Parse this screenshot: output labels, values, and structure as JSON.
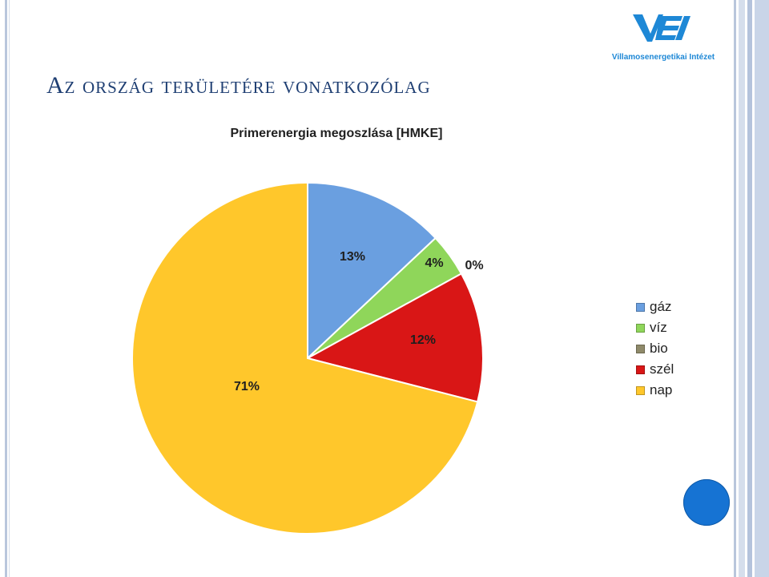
{
  "slide": {
    "title": "Az ország területére vonatkozólag",
    "logo_caption": "Villamosenergetikai Intézet"
  },
  "colors": {
    "title": "#1f3f73",
    "logo": "#1e88d6",
    "nav_dot": "#1673d3",
    "frame": "#b9c6dc"
  },
  "chart_data": {
    "type": "pie",
    "title": "Primerenergia megoszlása [HMKE]",
    "legend_position": "right",
    "slices": [
      {
        "name": "gáz",
        "value": 13,
        "label": "13%",
        "color": "#6a9fe0"
      },
      {
        "name": "víz",
        "value": 4,
        "label": "4%",
        "color": "#8fd65a"
      },
      {
        "name": "bio",
        "value": 0,
        "label": "0%",
        "color": "#8f8a6a"
      },
      {
        "name": "szél",
        "value": 12,
        "label": "12%",
        "color": "#d91616"
      },
      {
        "name": "nap",
        "value": 71,
        "label": "71%",
        "color": "#ffc72b"
      }
    ]
  }
}
